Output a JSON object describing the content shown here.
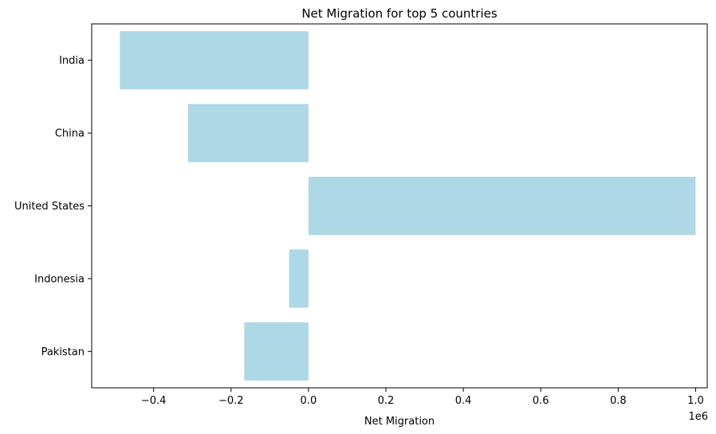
{
  "chart_data": {
    "type": "bar",
    "orientation": "horizontal",
    "title": "Net Migration for top 5 countries",
    "xlabel": "Net Migration",
    "ylabel": "",
    "x_offset_label": "1e6",
    "x_scale": 1000000,
    "categories": [
      "India",
      "China",
      "United States",
      "Indonesia",
      "Pakistan"
    ],
    "values": [
      -487303,
      -311220,
      999879,
      -49997,
      -165988
    ],
    "xlim": [
      -0.56,
      1.03
    ],
    "x_ticks": [
      -0.4,
      -0.2,
      0.0,
      0.2,
      0.4,
      0.6,
      0.8,
      1.0
    ],
    "x_tick_labels": [
      "−0.4",
      "−0.2",
      "0.0",
      "0.2",
      "0.4",
      "0.6",
      "0.8",
      "1.0"
    ],
    "bar_color": "#add8e6",
    "grid": false,
    "legend": "none"
  }
}
